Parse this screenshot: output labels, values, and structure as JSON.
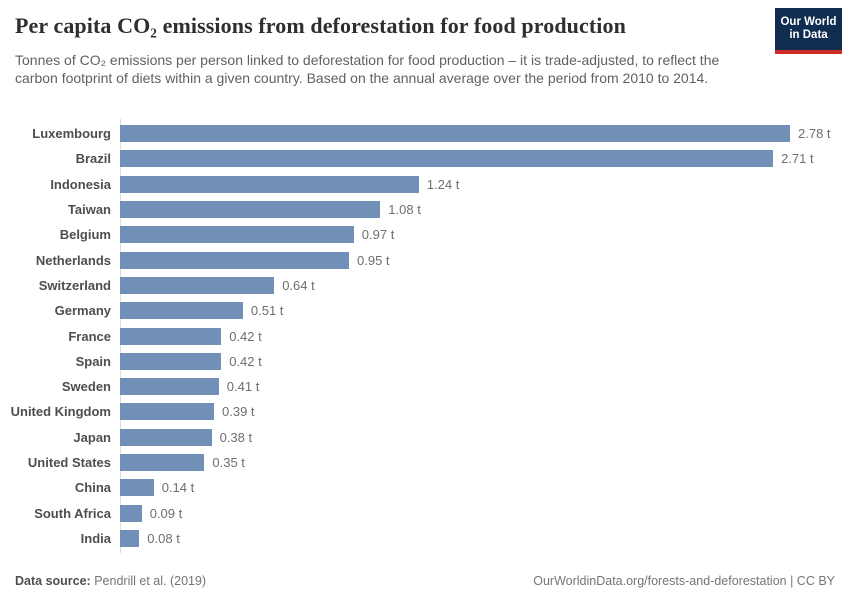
{
  "header": {
    "title": "Per capita CO₂ emissions from deforestation for food production",
    "subtitle": "Tonnes of CO₂ emissions per person linked to deforestation for food production – it is trade-adjusted, to reflect the carbon footprint of diets within a given country. Based on the annual average over the period from 2010 to 2014."
  },
  "logo": {
    "line1": "Our World",
    "line2": "in Data",
    "background_color": "#102d50",
    "stripe_color": "#cf2b26"
  },
  "chart_data": {
    "type": "bar",
    "orientation": "horizontal",
    "title": "Per capita CO₂ emissions from deforestation for food production",
    "unit": "tonnes per person",
    "xlim": [
      0,
      2.78
    ],
    "grid": false,
    "bar_color": "#7190b8",
    "categories": [
      "Luxembourg",
      "Brazil",
      "Indonesia",
      "Taiwan",
      "Belgium",
      "Netherlands",
      "Switzerland",
      "Germany",
      "France",
      "Spain",
      "Sweden",
      "United Kingdom",
      "Japan",
      "United States",
      "China",
      "South Africa",
      "India"
    ],
    "values": [
      2.78,
      2.71,
      1.24,
      1.08,
      0.97,
      0.95,
      0.64,
      0.51,
      0.42,
      0.42,
      0.41,
      0.39,
      0.38,
      0.35,
      0.14,
      0.09,
      0.08
    ],
    "value_labels": [
      "2.78 t",
      "2.71 t",
      "1.24 t",
      "1.08 t",
      "0.97 t",
      "0.95 t",
      "0.64 t",
      "0.51 t",
      "0.42 t",
      "0.42 t",
      "0.41 t",
      "0.39 t",
      "0.38 t",
      "0.35 t",
      "0.14 t",
      "0.09 t",
      "0.08 t"
    ]
  },
  "footer": {
    "datasource_label": "Data source:",
    "datasource_value": "Pendrill et al. (2019)",
    "credit": "OurWorldinData.org/forests-and-deforestation | CC BY"
  }
}
